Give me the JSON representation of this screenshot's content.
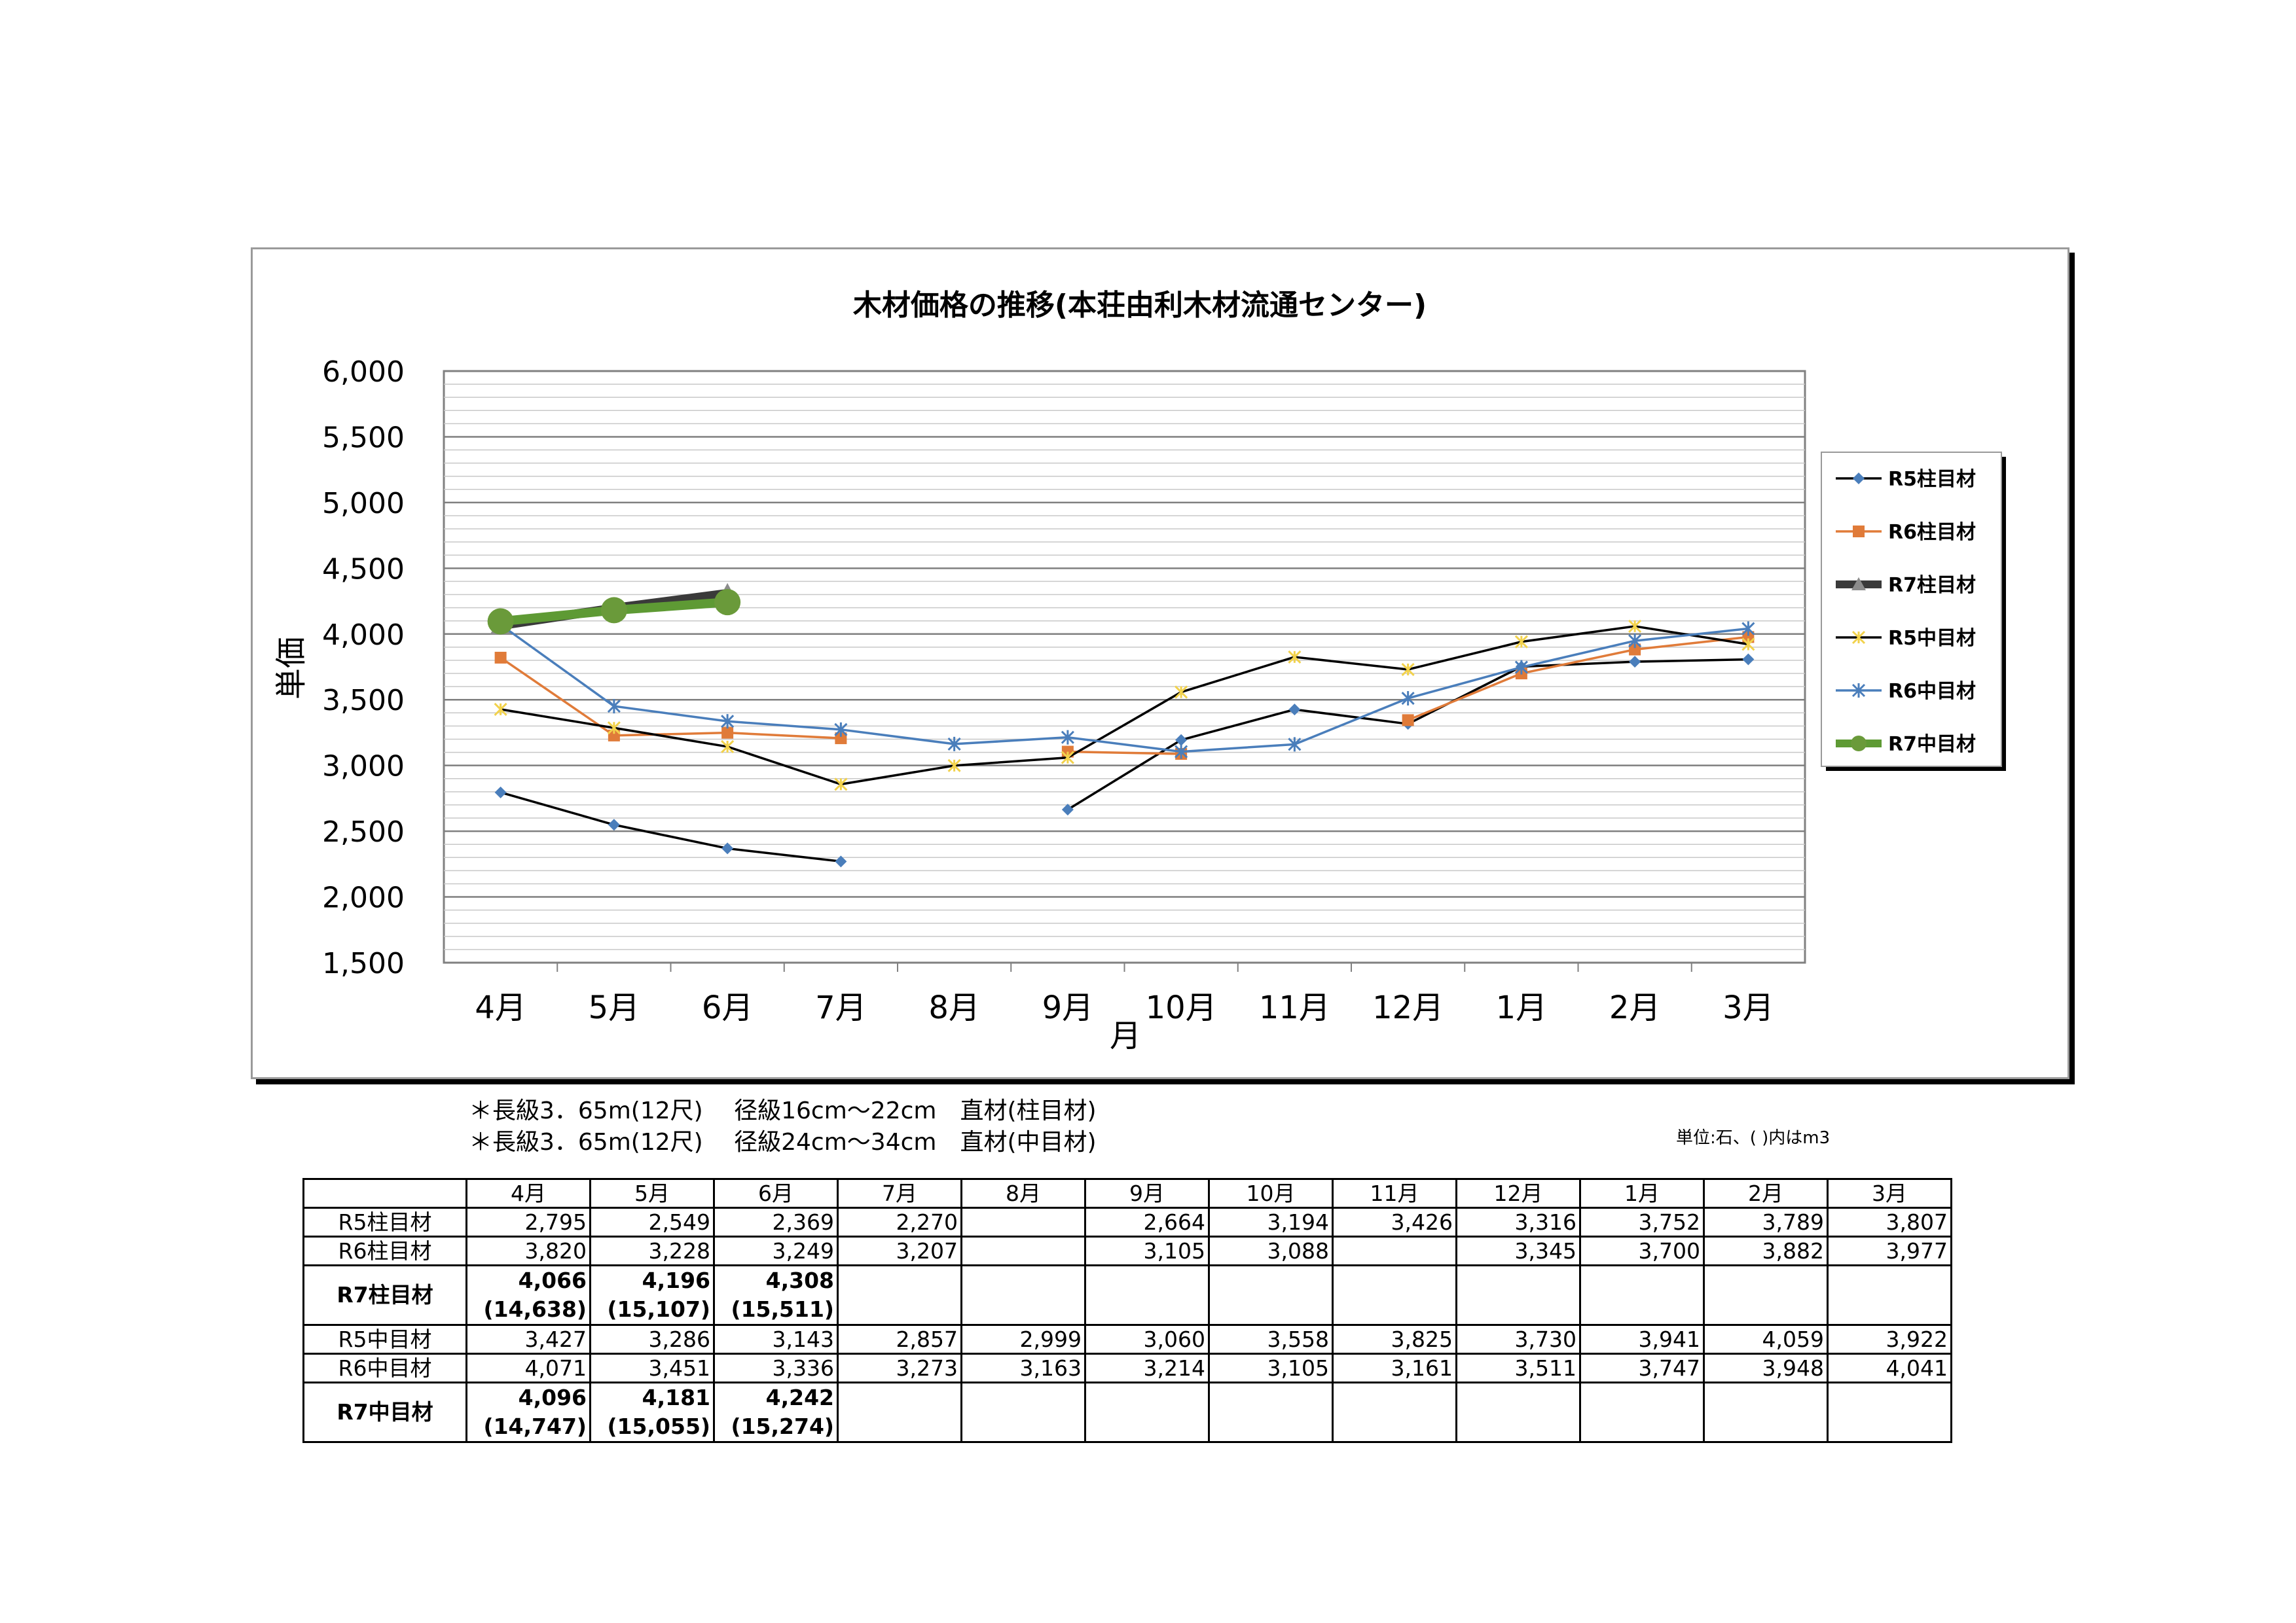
{
  "chart_data": {
    "type": "line",
    "title": "木材価格の推移(本荘由利木材流通センター)",
    "xlabel": "月",
    "ylabel": "単価",
    "ylim": [
      1500,
      6000
    ],
    "yticks": [
      "6,000",
      "5,500",
      "5,000",
      "4,500",
      "4,000",
      "3,500",
      "3,000",
      "2,500",
      "2,000",
      "1,500"
    ],
    "categories": [
      "4月",
      "5月",
      "6月",
      "7月",
      "8月",
      "9月",
      "10月",
      "11月",
      "12月",
      "1月",
      "2月",
      "3月"
    ],
    "legend_position": "right",
    "grid": true,
    "series": [
      {
        "name": "R5柱目材",
        "color": "#4a7ebb",
        "marker": "diamond",
        "line_color": "#000000",
        "values": [
          2795,
          2549,
          2369,
          2270,
          null,
          2664,
          3194,
          3426,
          3316,
          3752,
          3789,
          3807
        ]
      },
      {
        "name": "R6柱目材",
        "color": "#e07b39",
        "marker": "square",
        "line_color": "#e07b39",
        "values": [
          3820,
          3228,
          3249,
          3207,
          null,
          3105,
          3088,
          null,
          3345,
          3700,
          3882,
          3977
        ]
      },
      {
        "name": "R7柱目材",
        "color": "#3a3a3a",
        "marker": "triangle",
        "line_color": "#3a3a3a",
        "values": [
          4066,
          4196,
          4308,
          null,
          null,
          null,
          null,
          null,
          null,
          null,
          null,
          null
        ]
      },
      {
        "name": "R5中目材",
        "color": "#f2d24c",
        "marker": "star",
        "line_color": "#000000",
        "values": [
          3427,
          3286,
          3143,
          2857,
          2999,
          3060,
          3558,
          3825,
          3730,
          3941,
          4059,
          3922
        ]
      },
      {
        "name": "R6中目材",
        "color": "#4a7ebb",
        "marker": "asterisk",
        "line_color": "#4a7ebb",
        "values": [
          4071,
          3451,
          3336,
          3273,
          3163,
          3214,
          3105,
          3161,
          3511,
          3747,
          3948,
          4041
        ]
      },
      {
        "name": "R7中目材",
        "color": "#6a9a3a",
        "marker": "circle",
        "line_color": "#5e9a34",
        "values": [
          4096,
          4181,
          4242,
          null,
          null,
          null,
          null,
          null,
          null,
          null,
          null,
          null
        ]
      }
    ]
  },
  "notes": {
    "line1": "＊長級3．65m(12尺)　 径級16cm～22cm　直材(柱目材)",
    "line2": "＊長級3．65m(12尺)　 径級24cm～34cm　直材(中目材)",
    "unit": "単位:石、( )内はm3"
  },
  "table": {
    "months": [
      "4月",
      "5月",
      "6月",
      "7月",
      "8月",
      "9月",
      "10月",
      "11月",
      "12月",
      "1月",
      "2月",
      "3月"
    ],
    "rows": [
      {
        "label": "R5柱目材",
        "cells": [
          "2,795",
          "2,549",
          "2,369",
          "2,270",
          "",
          "2,664",
          "3,194",
          "3,426",
          "3,316",
          "3,752",
          "3,789",
          "3,807"
        ]
      },
      {
        "label": "R6柱目材",
        "cells": [
          "3,820",
          "3,228",
          "3,249",
          "3,207",
          "",
          "3,105",
          "3,088",
          "",
          "3,345",
          "3,700",
          "3,882",
          "3,977"
        ]
      },
      {
        "label": "R7柱目材",
        "cells": [
          "4,066",
          "4,196",
          "4,308",
          "",
          "",
          "",
          "",
          "",
          "",
          "",
          "",
          ""
        ],
        "sub": [
          "(14,638)",
          "(15,107)",
          "(15,511)",
          "",
          "",
          "",
          "",
          "",
          "",
          "",
          "",
          ""
        ]
      },
      {
        "label": "R5中目材",
        "cells": [
          "3,427",
          "3,286",
          "3,143",
          "2,857",
          "2,999",
          "3,060",
          "3,558",
          "3,825",
          "3,730",
          "3,941",
          "4,059",
          "3,922"
        ]
      },
      {
        "label": "R6中目材",
        "cells": [
          "4,071",
          "3,451",
          "3,336",
          "3,273",
          "3,163",
          "3,214",
          "3,105",
          "3,161",
          "3,511",
          "3,747",
          "3,948",
          "4,041"
        ]
      },
      {
        "label": "R7中目材",
        "cells": [
          "4,096",
          "4,181",
          "4,242",
          "",
          "",
          "",
          "",
          "",
          "",
          "",
          "",
          ""
        ],
        "sub": [
          "(14,747)",
          "(15,055)",
          "(15,274)",
          "",
          "",
          "",
          "",
          "",
          "",
          "",
          "",
          ""
        ]
      }
    ]
  }
}
